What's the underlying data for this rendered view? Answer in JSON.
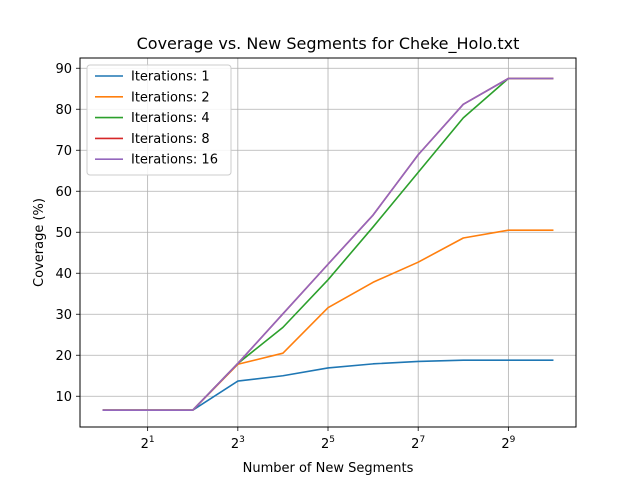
{
  "chart_data": {
    "type": "line",
    "title": "Coverage vs. New Segments for Cheke_Holo.txt",
    "xlabel": "Number of New Segments",
    "ylabel": "Coverage (%)",
    "x_scale": "log2",
    "x_ticks": [
      {
        "value": 2,
        "base": "2",
        "exp": "1"
      },
      {
        "value": 8,
        "base": "2",
        "exp": "3"
      },
      {
        "value": 32,
        "base": "2",
        "exp": "5"
      },
      {
        "value": 128,
        "base": "2",
        "exp": "7"
      },
      {
        "value": 512,
        "base": "2",
        "exp": "9"
      }
    ],
    "xlim": [
      0.707,
      1448
    ],
    "ylim": [
      2.5,
      92.5
    ],
    "y_ticks": [
      10,
      20,
      30,
      40,
      50,
      60,
      70,
      80,
      90
    ],
    "grid": true,
    "legend_position": "upper left",
    "x": [
      1,
      2,
      4,
      8,
      16,
      32,
      64,
      128,
      256,
      512,
      1024
    ],
    "series": [
      {
        "name": "Iterations: 1",
        "color": "#1f77b4",
        "values": [
          6.6,
          6.6,
          6.6,
          13.7,
          15.0,
          16.9,
          17.9,
          18.5,
          18.8,
          18.8,
          18.8
        ]
      },
      {
        "name": "Iterations: 2",
        "color": "#ff7f0e",
        "values": [
          6.6,
          6.6,
          6.6,
          17.8,
          20.5,
          31.6,
          37.8,
          42.7,
          48.6,
          50.5,
          50.5
        ]
      },
      {
        "name": "Iterations: 4",
        "color": "#2ca02c",
        "values": [
          6.6,
          6.6,
          6.6,
          18.0,
          26.8,
          38.4,
          51.3,
          64.6,
          77.9,
          87.5,
          87.5
        ]
      },
      {
        "name": "Iterations: 8",
        "color": "#d62728",
        "values": [
          6.6,
          6.6,
          6.6,
          18.0,
          30.1,
          42.2,
          54.2,
          68.9,
          81.2,
          87.5,
          87.5
        ]
      },
      {
        "name": "Iterations: 16",
        "color": "#9467bd",
        "values": [
          6.6,
          6.6,
          6.6,
          18.0,
          30.1,
          42.2,
          54.2,
          68.9,
          81.2,
          87.5,
          87.5
        ]
      }
    ]
  }
}
